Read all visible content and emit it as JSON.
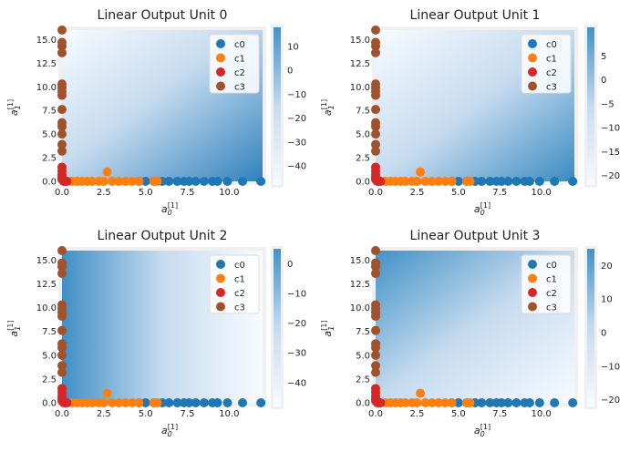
{
  "figure": {
    "panels": [
      {
        "title": "Linear Output Unit 0",
        "xlabel": "a_0^{[1]}",
        "ylabel": "a_1^{[1]}",
        "xticks": [
          "0.0",
          "2.5",
          "5.0",
          "7.5",
          "10.0"
        ],
        "yticks": [
          "0.0",
          "2.5",
          "5.0",
          "7.5",
          "10.0",
          "12.5",
          "15.0"
        ],
        "colorbar": {
          "ticks": [
            "10",
            "0",
            "−10",
            "−20",
            "−30",
            "−40"
          ],
          "min": -48,
          "max": 18
        },
        "gradient": "diagonal-light-top-left"
      },
      {
        "title": "Linear Output Unit 1",
        "xlabel": "a_0^{[1]}",
        "ylabel": "a_1^{[1]}",
        "xticks": [
          "0.0",
          "2.5",
          "5.0",
          "7.5",
          "10.0"
        ],
        "yticks": [
          "0.0",
          "2.5",
          "5.0",
          "7.5",
          "10.0",
          "12.5",
          "15.0"
        ],
        "colorbar": {
          "ticks": [
            "5",
            "0",
            "−5",
            "−10",
            "−15",
            "−20"
          ],
          "min": -22,
          "max": 11
        },
        "gradient": "diagonal-dark-bottom-right"
      },
      {
        "title": "Linear Output Unit 2",
        "xlabel": "a_0^{[1]}",
        "ylabel": "a_1^{[1]}",
        "xticks": [
          "0.0",
          "2.5",
          "5.0",
          "7.5",
          "10.0"
        ],
        "yticks": [
          "0.0",
          "2.5",
          "5.0",
          "7.5",
          "10.0",
          "12.5",
          "15.0"
        ],
        "colorbar": {
          "ticks": [
            "0",
            "−10",
            "−20",
            "−30",
            "−40"
          ],
          "min": -48,
          "max": 5
        },
        "gradient": "horizontal-dark-left"
      },
      {
        "title": "Linear Output Unit 3",
        "xlabel": "a_0^{[1]}",
        "ylabel": "a_1^{[1]}",
        "xticks": [
          "0.0",
          "2.5",
          "5.0",
          "7.5",
          "10.0"
        ],
        "yticks": [
          "0.0",
          "2.5",
          "5.0",
          "7.5",
          "10.0",
          "12.5",
          "15.0"
        ],
        "colorbar": {
          "ticks": [
            "20",
            "10",
            "0",
            "−10",
            "−20"
          ],
          "min": -22,
          "max": 25
        },
        "gradient": "diagonal-dark-top-left"
      }
    ],
    "legend": [
      {
        "label": "c0",
        "color": "#1f77b4"
      },
      {
        "label": "c1",
        "color": "#ff7f0e"
      },
      {
        "label": "c2",
        "color": "#d62728"
      },
      {
        "label": "c3",
        "color": "#a0522d"
      }
    ]
  },
  "chart_data": {
    "type": "scatter",
    "xlim": [
      0,
      12
    ],
    "ylim": [
      0,
      16
    ],
    "series": [
      {
        "name": "c0",
        "color": "#1f77b4",
        "x": [
          4.6,
          5.0,
          5.5,
          6.0,
          6.4,
          6.9,
          7.3,
          7.6,
          8.0,
          8.5,
          9.0,
          9.3,
          9.9,
          10.8,
          11.9
        ],
        "y": [
          0,
          0,
          0,
          0,
          0,
          0,
          0,
          0,
          0,
          0,
          0,
          0,
          0,
          0,
          0
        ]
      },
      {
        "name": "c1",
        "color": "#ff7f0e",
        "x": [
          0.6,
          0.9,
          1.2,
          1.5,
          1.8,
          2.2,
          2.5,
          2.7,
          3.0,
          3.4,
          3.8,
          4.2,
          4.6,
          5.5,
          5.7
        ],
        "y": [
          0,
          0,
          0,
          0,
          0,
          0,
          0,
          1.0,
          0,
          0,
          0,
          0,
          0,
          0,
          0
        ]
      },
      {
        "name": "c2",
        "color": "#d62728",
        "x": [
          0,
          0,
          0,
          0,
          0,
          0.1,
          0.2,
          0.3
        ],
        "y": [
          1.5,
          1.1,
          0.7,
          0.4,
          0.2,
          0,
          0,
          0
        ]
      },
      {
        "name": "c3",
        "color": "#a0522d",
        "x": [
          0,
          0,
          0,
          0,
          0,
          0,
          0,
          0,
          0,
          0,
          0,
          0,
          0,
          0
        ],
        "y": [
          16.0,
          14.7,
          14.3,
          13.6,
          10.3,
          9.9,
          9.5,
          9.1,
          7.6,
          6.2,
          5.8,
          5.0,
          3.9,
          3.2
        ]
      }
    ]
  }
}
